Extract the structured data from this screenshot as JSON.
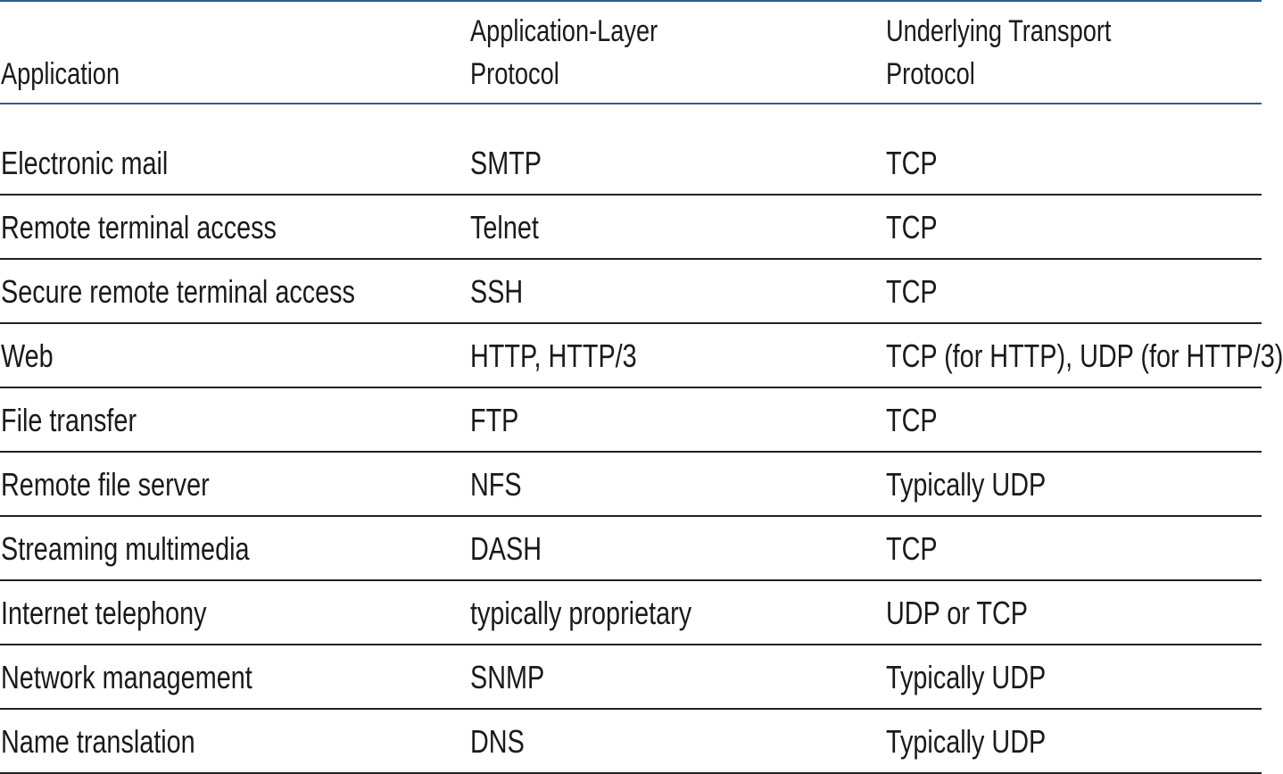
{
  "table": {
    "headers": {
      "app": [
        "Application"
      ],
      "proto": [
        "Application-Layer",
        "Protocol"
      ],
      "transport": [
        "Underlying Transport",
        "Protocol"
      ]
    },
    "rows": [
      {
        "app": "Electronic mail",
        "proto": "SMTP",
        "transport": "TCP"
      },
      {
        "app": "Remote terminal access",
        "proto": "Telnet",
        "transport": "TCP"
      },
      {
        "app": "Secure remote terminal access",
        "proto": "SSH",
        "transport": "TCP"
      },
      {
        "app": "Web",
        "proto": "HTTP, HTTP/3",
        "transport": "TCP (for HTTP), UDP (for HTTP/3)"
      },
      {
        "app": "File transfer",
        "proto": "FTP",
        "transport": "TCP"
      },
      {
        "app": "Remote file server",
        "proto": "NFS",
        "transport": "Typically UDP"
      },
      {
        "app": "Streaming multimedia",
        "proto": "DASH",
        "transport": "TCP"
      },
      {
        "app": "Internet telephony",
        "proto": "typically proprietary",
        "transport": "UDP or TCP"
      },
      {
        "app": "Network management",
        "proto": "SNMP",
        "transport": "Typically UDP"
      },
      {
        "app": "Name translation",
        "proto": "DNS",
        "transport": "Typically UDP"
      }
    ]
  }
}
